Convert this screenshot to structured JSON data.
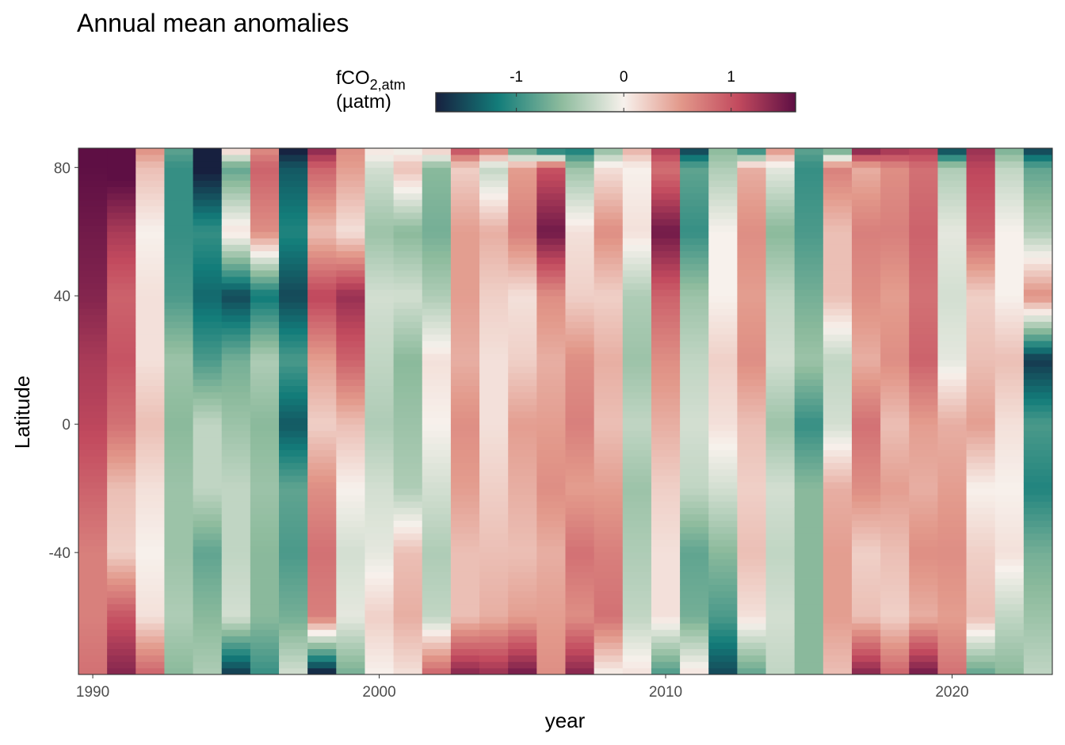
{
  "chart_data": {
    "type": "heatmap",
    "title": "Annual mean anomalies",
    "xlabel": "year",
    "ylabel": "Latitude",
    "xlim": [
      1989.5,
      2023.5
    ],
    "ylim": [
      -78,
      86
    ],
    "x_ticks": [
      1990,
      2000,
      2010,
      2020
    ],
    "y_ticks": [
      -40,
      0,
      40,
      80
    ],
    "legend": {
      "title_main": "fCO",
      "title_sub": "2,atm",
      "title_unit": "(µatm)",
      "range": [
        -1.75,
        1.6
      ],
      "ticks": [
        -1,
        0,
        1
      ],
      "tick_labels": [
        "-1",
        "0",
        "1"
      ],
      "placement": "top",
      "colors": [
        "#17203f",
        "#137d7a",
        "#8dbb9d",
        "#f7f1ec",
        "#e2988a",
        "#c24a5e",
        "#5e0f44"
      ]
    },
    "lat_nodes": [
      -78,
      -60,
      -40,
      -20,
      0,
      20,
      40,
      60,
      80,
      86
    ],
    "years": [
      1990,
      1991,
      1992,
      1993,
      1994,
      1995,
      1996,
      1997,
      1998,
      1999,
      2000,
      2001,
      2002,
      2003,
      2004,
      2005,
      2006,
      2007,
      2008,
      2009,
      2010,
      2011,
      2012,
      2013,
      2014,
      2015,
      2016,
      2017,
      2018,
      2019,
      2020,
      2021,
      2022,
      2023
    ],
    "anomaly_profiles": [
      [
        0.8,
        0.7,
        0.7,
        0.9,
        1.1,
        1.2,
        1.4,
        1.5,
        1.6,
        1.6
      ],
      [
        1.4,
        1.0,
        0.2,
        0.3,
        0.8,
        1.0,
        0.9,
        1.2,
        1.7,
        1.7
      ],
      [
        0.9,
        0.1,
        0.0,
        0.1,
        0.3,
        0.1,
        0.1,
        0.0,
        0.3,
        0.6
      ],
      [
        -0.6,
        -0.4,
        -0.5,
        -0.5,
        -0.6,
        -0.5,
        -0.9,
        -1.0,
        -1.0,
        -0.8
      ],
      [
        -0.4,
        -0.6,
        -0.8,
        -0.3,
        -0.3,
        -0.9,
        -1.3,
        -1.0,
        -1.8,
        -1.8
      ],
      [
        -1.6,
        -0.2,
        -0.3,
        -0.3,
        -0.5,
        -0.7,
        -1.5,
        0.1,
        -0.8,
        0.3
      ],
      [
        -1.0,
        -0.6,
        -0.6,
        -0.5,
        -0.6,
        -0.4,
        -1.2,
        0.6,
        0.9,
        0.6
      ],
      [
        -0.2,
        -0.7,
        -0.9,
        -0.8,
        -1.4,
        -0.9,
        -1.5,
        -1.1,
        -1.4,
        -1.8
      ],
      [
        -1.8,
        0.7,
        0.8,
        0.6,
        0.2,
        0.5,
        1.1,
        0.3,
        0.9,
        1.4
      ],
      [
        -0.7,
        -0.1,
        -0.2,
        0.0,
        0.3,
        0.9,
        1.3,
        0.1,
        0.5,
        0.6
      ],
      [
        0.0,
        0.2,
        -0.1,
        -0.2,
        -0.4,
        -0.3,
        -0.2,
        -0.5,
        -0.2,
        0.1
      ],
      [
        0.1,
        0.4,
        0.3,
        -0.4,
        -0.5,
        -0.6,
        -0.2,
        -0.6,
        0.3,
        -0.1
      ],
      [
        0.9,
        -0.3,
        -0.4,
        -0.2,
        0.0,
        0.1,
        -0.4,
        -0.7,
        -0.6,
        0.3
      ],
      [
        1.4,
        0.3,
        0.3,
        0.5,
        0.6,
        0.4,
        0.5,
        0.5,
        0.2,
        1.1
      ],
      [
        1.3,
        0.4,
        0.3,
        0.2,
        0.1,
        0.1,
        0.2,
        0.4,
        -0.3,
        0.8
      ],
      [
        1.5,
        0.5,
        0.3,
        0.4,
        0.5,
        0.2,
        0.1,
        0.7,
        0.5,
        -0.9
      ],
      [
        0.6,
        0.5,
        0.4,
        0.6,
        0.5,
        0.4,
        0.6,
        1.5,
        1.0,
        -1.4
      ],
      [
        1.4,
        0.6,
        0.8,
        0.5,
        0.7,
        0.6,
        0.2,
        0.1,
        -0.5,
        -1.2
      ],
      [
        0.0,
        0.8,
        0.7,
        0.5,
        0.3,
        0.4,
        0.2,
        0.6,
        0.1,
        -0.6
      ],
      [
        0.1,
        -0.3,
        -0.4,
        -0.5,
        -0.3,
        -0.5,
        -0.4,
        0.1,
        0.0,
        0.4
      ],
      [
        -0.9,
        0.1,
        0.1,
        0.2,
        0.4,
        0.6,
        0.9,
        1.5,
        0.8,
        1.2
      ],
      [
        0.1,
        -0.7,
        -0.8,
        -0.3,
        -0.2,
        -0.3,
        -0.5,
        -1.0,
        -0.8,
        -1.6
      ],
      [
        -1.5,
        -0.9,
        -0.6,
        -0.2,
        0.1,
        0.2,
        0.0,
        0.0,
        -0.4,
        -0.6
      ],
      [
        -0.8,
        0.1,
        0.3,
        0.2,
        0.3,
        0.6,
        0.5,
        0.6,
        0.4,
        -1.2
      ],
      [
        -0.3,
        -0.2,
        -0.3,
        -0.2,
        -0.5,
        -0.2,
        -0.3,
        -0.6,
        -0.1,
        0.6
      ],
      [
        -0.6,
        -0.6,
        -0.6,
        -0.6,
        -1.0,
        -0.5,
        -0.7,
        -0.9,
        -1.0,
        -0.8
      ],
      [
        0.3,
        0.5,
        0.5,
        0.4,
        -0.2,
        -0.3,
        0.3,
        0.3,
        0.7,
        -0.9
      ],
      [
        1.4,
        0.3,
        0.2,
        0.6,
        0.8,
        0.4,
        0.6,
        0.7,
        0.4,
        1.5
      ],
      [
        0.9,
        0.2,
        0.3,
        0.5,
        0.3,
        0.6,
        0.5,
        0.7,
        0.6,
        1.3
      ],
      [
        1.5,
        0.4,
        0.6,
        0.4,
        0.5,
        0.9,
        0.8,
        0.9,
        0.8,
        1.2
      ],
      [
        0.8,
        0.5,
        0.6,
        0.5,
        0.4,
        -0.1,
        -0.2,
        -0.1,
        -0.4,
        -1.6
      ],
      [
        -0.8,
        0.3,
        0.2,
        0.0,
        0.5,
        0.3,
        0.2,
        0.9,
        1.1,
        1.3
      ],
      [
        -0.6,
        -0.3,
        0.1,
        0.0,
        0.1,
        0.3,
        0.0,
        0.0,
        -0.3,
        -0.7
      ],
      [
        -0.3,
        -0.5,
        -0.7,
        -1.1,
        -0.9,
        -1.6,
        0.6,
        -0.4,
        -0.8,
        -1.6
      ]
    ]
  }
}
